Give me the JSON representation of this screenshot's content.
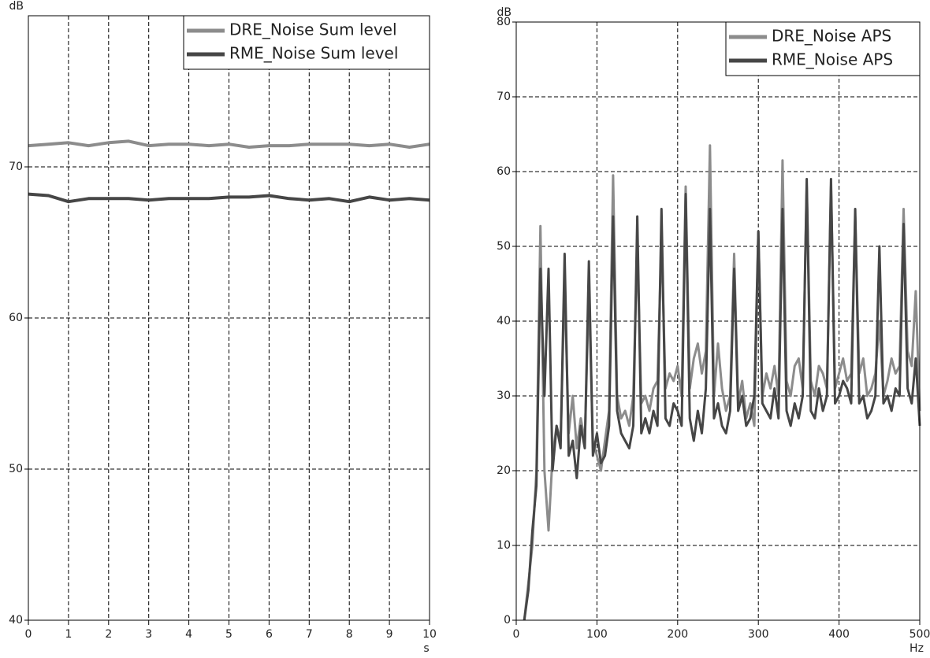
{
  "chart_data": [
    {
      "type": "line",
      "x_label": "s",
      "y_label": "dB",
      "x": [
        0,
        0.5,
        1,
        1.5,
        2,
        2.5,
        3,
        3.5,
        4,
        4.5,
        5,
        5.5,
        6,
        6.5,
        7,
        7.5,
        8,
        8.5,
        9,
        9.5,
        10
      ],
      "xlim": [
        0,
        10
      ],
      "xticks": [
        0,
        1,
        2,
        3,
        4,
        5,
        6,
        7,
        8,
        9,
        10
      ],
      "ylim": [
        40,
        80
      ],
      "yticks": [
        40,
        50,
        60,
        70
      ],
      "grid": true,
      "legend": "upper right",
      "series": [
        {
          "name": "DRE_Noise Sum level",
          "color": "#8c8c8c",
          "values": [
            71.4,
            71.5,
            71.6,
            71.4,
            71.6,
            71.7,
            71.4,
            71.5,
            71.5,
            71.4,
            71.5,
            71.3,
            71.4,
            71.4,
            71.5,
            71.5,
            71.5,
            71.4,
            71.5,
            71.3,
            71.5
          ]
        },
        {
          "name": "RME_Noise Sum level",
          "color": "#464646",
          "values": [
            68.2,
            68.1,
            67.7,
            67.9,
            67.9,
            67.9,
            67.8,
            67.9,
            67.9,
            67.9,
            68.0,
            68.0,
            68.1,
            67.9,
            67.8,
            67.9,
            67.7,
            68.0,
            67.8,
            67.9,
            67.8
          ]
        }
      ]
    },
    {
      "type": "line",
      "x_label": "Hz",
      "y_label": "dB",
      "x": [
        10,
        15,
        20,
        25,
        30,
        35,
        40,
        45,
        50,
        55,
        60,
        65,
        70,
        75,
        80,
        85,
        90,
        95,
        100,
        105,
        110,
        115,
        120,
        125,
        130,
        135,
        140,
        145,
        150,
        155,
        160,
        165,
        170,
        175,
        180,
        185,
        190,
        195,
        200,
        205,
        210,
        215,
        220,
        225,
        230,
        235,
        240,
        245,
        250,
        255,
        260,
        265,
        270,
        275,
        280,
        285,
        290,
        295,
        300,
        305,
        310,
        315,
        320,
        325,
        330,
        335,
        340,
        345,
        350,
        355,
        360,
        365,
        370,
        375,
        380,
        385,
        390,
        395,
        400,
        405,
        410,
        415,
        420,
        425,
        430,
        435,
        440,
        445,
        450,
        455,
        460,
        465,
        470,
        475,
        480,
        485,
        490,
        495,
        500
      ],
      "xlim": [
        0,
        500
      ],
      "xticks": [
        0,
        100,
        200,
        300,
        400,
        500
      ],
      "ylim": [
        0,
        80
      ],
      "yticks": [
        0,
        10,
        20,
        30,
        40,
        50,
        60,
        70,
        80
      ],
      "grid": true,
      "legend": "upper right",
      "series": [
        {
          "name": "DRE_Noise  APS",
          "color": "#8c8c8c",
          "values": [
            0,
            5,
            10,
            20,
            52.7,
            20,
            12,
            22,
            26,
            24,
            45,
            25,
            30,
            23,
            27,
            24,
            44,
            24,
            22,
            20,
            24,
            28,
            59.5,
            30,
            27,
            28,
            26,
            30,
            50,
            29,
            30,
            28,
            31,
            32,
            51,
            31,
            33,
            32,
            34,
            30,
            58,
            31,
            35,
            37,
            33,
            36,
            63.5,
            30,
            37,
            31,
            28,
            30,
            49,
            29,
            32,
            27,
            29,
            26,
            52,
            30,
            33,
            31,
            34,
            30,
            61.5,
            32,
            30,
            34,
            35,
            31,
            58,
            32,
            30,
            34,
            33,
            31,
            58,
            31,
            33,
            35,
            32,
            33,
            54,
            33,
            35,
            30,
            31,
            33,
            40,
            30,
            32,
            35,
            33,
            34,
            55,
            36,
            34,
            44,
            28
          ]
        },
        {
          "name": "RME_Noise  APS",
          "color": "#464646",
          "values": [
            0,
            4,
            12,
            18,
            47,
            30,
            47,
            20,
            26,
            23,
            49,
            22,
            24,
            19,
            26,
            23,
            48,
            22,
            25,
            21,
            22,
            26,
            54,
            28,
            25,
            24,
            23,
            26,
            54,
            25,
            27,
            25,
            28,
            26,
            55,
            27,
            26,
            29,
            28,
            26,
            57,
            27,
            24,
            28,
            25,
            31,
            55,
            27,
            29,
            26,
            25,
            28,
            47,
            28,
            30,
            26,
            27,
            30,
            52,
            29,
            28,
            27,
            31,
            27,
            55,
            28,
            26,
            29,
            27,
            30,
            59,
            28,
            27,
            31,
            28,
            30,
            59,
            29,
            30,
            32,
            31,
            29,
            55,
            29,
            30,
            27,
            28,
            30,
            50,
            29,
            30,
            28,
            31,
            30,
            53,
            31,
            29,
            35,
            26
          ]
        }
      ]
    }
  ]
}
